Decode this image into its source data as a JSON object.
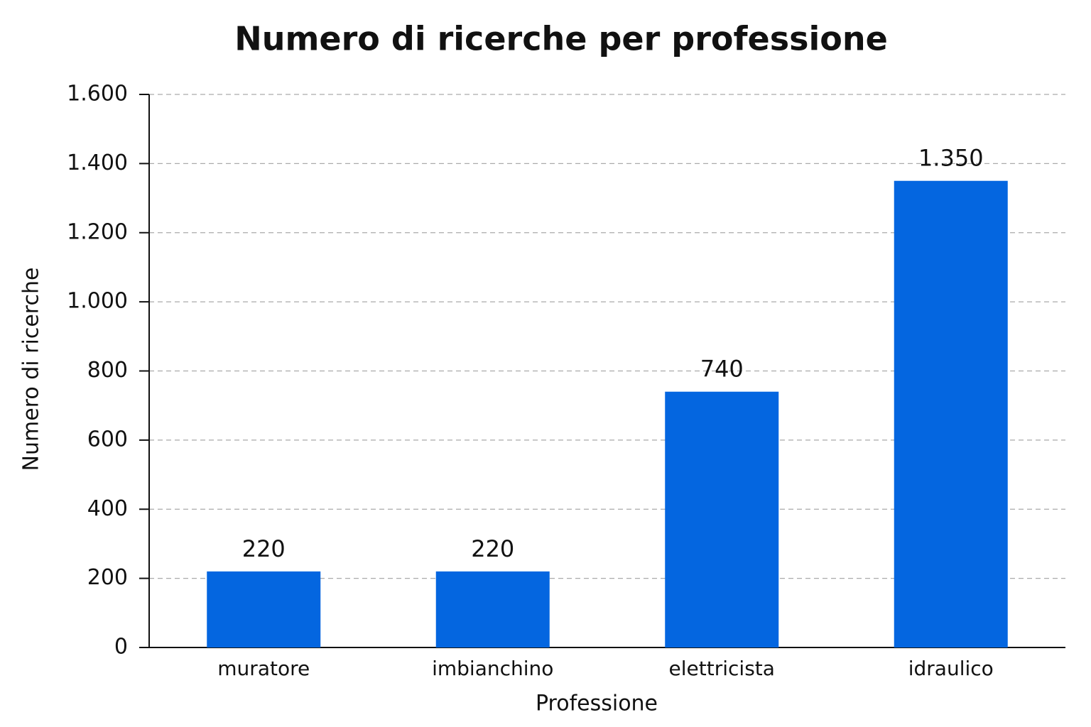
{
  "chart_data": {
    "type": "bar",
    "title": "Numero di ricerche per professione",
    "x_label": "Professione",
    "y_label": "Numero di ricerche",
    "categories": [
      "muratore",
      "imbianchino",
      "elettricista",
      "idraulico"
    ],
    "values": [
      220,
      220,
      740,
      1350
    ],
    "value_labels": [
      "220",
      "220",
      "740",
      "1.350"
    ],
    "color": "#0466e0",
    "ylim": [
      0,
      1600
    ],
    "yticks": [
      0,
      200,
      400,
      600,
      800,
      {
        "value": 1000,
        "label": "1.000"
      },
      {
        "value": 1200,
        "label": "1.200"
      },
      {
        "value": 1400,
        "label": "1.400"
      },
      {
        "value": 1600,
        "label": "1.600"
      }
    ],
    "grid": true
  }
}
